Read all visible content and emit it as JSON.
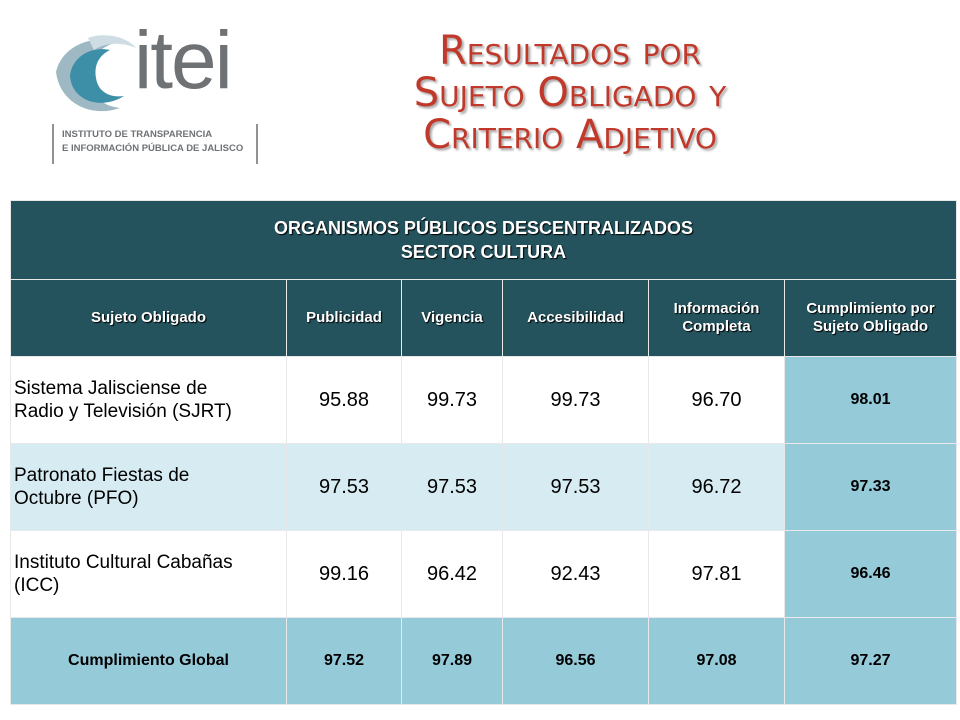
{
  "logo": {
    "word": "itei",
    "subtitle_line1": "INSTITUTO DE TRANSPARENCIA",
    "subtitle_line2": "E INFORMACIÓN PÚBLICA DE JALISCO",
    "colors": {
      "teal": "#3d8fa8",
      "gray": "#6f7275"
    }
  },
  "title": {
    "line1": "Resultados por",
    "line2": "Sujeto Obligado y",
    "line3": "Criterio Adjetivo",
    "color": "#c0392b"
  },
  "table": {
    "header_line1": "ORGANISMOS PÚBLICOS DESCENTRALIZADOS",
    "header_line2": "SECTOR CULTURA",
    "columns": {
      "c0": "Sujeto Obligado",
      "c1": "Publicidad",
      "c2": "Vigencia",
      "c3": "Accesibilidad",
      "c4_line1": "Información",
      "c4_line2": "Completa",
      "c5_line1": "Cumplimiento por",
      "c5_line2": "Sujeto Obligado"
    },
    "rows": [
      {
        "name_line1": "Sistema Jalisciense de",
        "name_line2": "Radio y Televisión (SJRT)",
        "publicidad": "95.88",
        "vigencia": "99.73",
        "accesibilidad": "99.73",
        "informacion": "96.70",
        "cumplimiento": "98.01"
      },
      {
        "name_line1": "Patronato Fiestas de",
        "name_line2": "Octubre (PFO)",
        "publicidad": "97.53",
        "vigencia": "97.53",
        "accesibilidad": "97.53",
        "informacion": "96.72",
        "cumplimiento": "97.33"
      },
      {
        "name_line1": "Instituto Cultural Cabañas",
        "name_line2": "(ICC)",
        "publicidad": "99.16",
        "vigencia": "96.42",
        "accesibilidad": "92.43",
        "informacion": "97.81",
        "cumplimiento": "96.46"
      }
    ],
    "global": {
      "label": "Cumplimiento Global",
      "publicidad": "97.52",
      "vigencia": "97.89",
      "accesibilidad": "96.56",
      "informacion": "97.08",
      "cumplimiento": "97.27"
    },
    "colors": {
      "header": "#24535d",
      "score": "#95cad9",
      "alt_row": "#d6ebf2"
    }
  }
}
